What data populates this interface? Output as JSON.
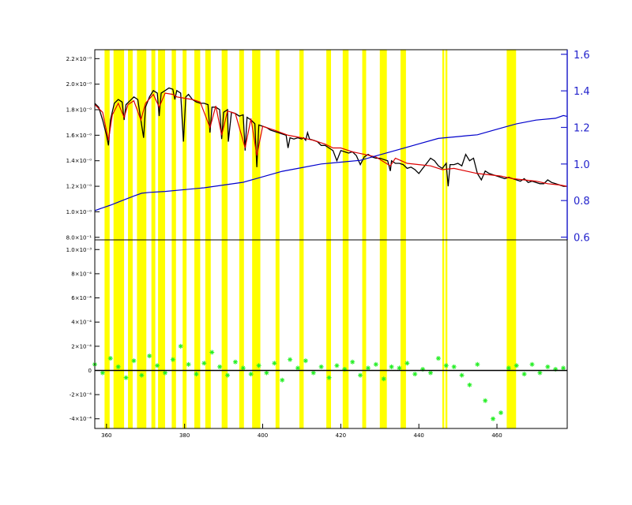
{
  "chart_data": [
    {
      "panel": "top",
      "type": "line",
      "xlim": [
        357,
        478
      ],
      "ylim": [
        0.78,
        2.27
      ],
      "y_tick_labels": [
        {
          "v": 0.8,
          "label": "8.0×10⁻¹"
        },
        {
          "v": 1.0,
          "label": "1.0×10⁻⁰"
        },
        {
          "v": 1.2,
          "label": "1.2×10⁻⁰"
        },
        {
          "v": 1.4,
          "label": "1.4×10⁻⁰"
        },
        {
          "v": 1.6,
          "label": "1.6×10⁻⁰"
        },
        {
          "v": 1.8,
          "label": "1.8×10⁻⁰"
        },
        {
          "v": 2.0,
          "label": "2.0×10⁻⁰"
        },
        {
          "v": 2.2,
          "label": "2.2×10⁻⁰"
        }
      ],
      "right_axis": {
        "ylim": [
          0.585,
          1.625
        ],
        "ticks": [
          "0.6",
          "0.8",
          "1.0",
          "1.2",
          "1.4",
          "1.6"
        ],
        "color": "#2222cc"
      },
      "masked_bands": [
        [
          359.5,
          360.8
        ],
        [
          361.8,
          364.5
        ],
        [
          365.5,
          366.7
        ],
        [
          367.8,
          370.2
        ],
        [
          371.5,
          372.5
        ],
        [
          373.2,
          375.0
        ],
        [
          376.7,
          377.8
        ],
        [
          379.5,
          380.5
        ],
        [
          382.5,
          384.0
        ],
        [
          385.3,
          386.7
        ],
        [
          389.5,
          391.0
        ],
        [
          394.0,
          395.2
        ],
        [
          397.3,
          399.4
        ],
        [
          403.3,
          404.3
        ],
        [
          409.4,
          410.5
        ],
        [
          416.3,
          417.5
        ],
        [
          420.5,
          422.0
        ],
        [
          425.5,
          426.5
        ],
        [
          430.0,
          431.8
        ],
        [
          435.3,
          436.7
        ],
        [
          446.0,
          446.5
        ],
        [
          446.8,
          447.3
        ],
        [
          462.5,
          464.9
        ]
      ],
      "band_color": "#ffff00",
      "series": [
        {
          "color": "#000000",
          "x": [
            357,
            358,
            359,
            360,
            360.5,
            361,
            362,
            363,
            364,
            364.5,
            365,
            366,
            367,
            368,
            368.8,
            369.5,
            370,
            371,
            372,
            373,
            373.5,
            374,
            375,
            376,
            377,
            377.5,
            378,
            379,
            379.7,
            380.3,
            381,
            382,
            383,
            384,
            385,
            386,
            386.5,
            387,
            388,
            389,
            389.5,
            390,
            391,
            391.2,
            392,
            393,
            394,
            395,
            395.5,
            396,
            397,
            398,
            398.5,
            399,
            400,
            401,
            402,
            403,
            404,
            405,
            406,
            406.5,
            407,
            408,
            409,
            410,
            410.5,
            411,
            411.5,
            412,
            413,
            414,
            415,
            416,
            417,
            418,
            419,
            420,
            421,
            422,
            423,
            424,
            425,
            426,
            427,
            428,
            429,
            430,
            431,
            432,
            432.7,
            433,
            434,
            435,
            436,
            437,
            438,
            439,
            440,
            441,
            442,
            443,
            444,
            445,
            446,
            447,
            447.5,
            448,
            449,
            450,
            451,
            452,
            453,
            454,
            455,
            456,
            457,
            458,
            459,
            460,
            461,
            462,
            463,
            464,
            465,
            466,
            467,
            468,
            469,
            470,
            471,
            472,
            473,
            474,
            475,
            476,
            477,
            478
          ],
          "y": [
            1.85,
            1.82,
            1.72,
            1.6,
            1.52,
            1.72,
            1.85,
            1.88,
            1.86,
            1.72,
            1.84,
            1.87,
            1.9,
            1.88,
            1.72,
            1.58,
            1.82,
            1.9,
            1.95,
            1.93,
            1.75,
            1.93,
            1.95,
            1.97,
            1.96,
            1.88,
            1.95,
            1.93,
            1.55,
            1.9,
            1.92,
            1.88,
            1.86,
            1.85,
            1.85,
            1.84,
            1.62,
            1.82,
            1.82,
            1.8,
            1.57,
            1.78,
            1.8,
            1.55,
            1.78,
            1.77,
            1.75,
            1.76,
            1.48,
            1.74,
            1.72,
            1.69,
            1.35,
            1.68,
            1.67,
            1.66,
            1.64,
            1.63,
            1.62,
            1.61,
            1.6,
            1.5,
            1.58,
            1.57,
            1.58,
            1.57,
            1.58,
            1.56,
            1.62,
            1.57,
            1.56,
            1.55,
            1.52,
            1.52,
            1.5,
            1.48,
            1.4,
            1.48,
            1.47,
            1.46,
            1.47,
            1.44,
            1.37,
            1.43,
            1.45,
            1.43,
            1.42,
            1.42,
            1.41,
            1.4,
            1.32,
            1.4,
            1.38,
            1.38,
            1.37,
            1.34,
            1.35,
            1.33,
            1.3,
            1.34,
            1.38,
            1.42,
            1.4,
            1.36,
            1.34,
            1.38,
            1.2,
            1.37,
            1.37,
            1.38,
            1.36,
            1.45,
            1.4,
            1.42,
            1.3,
            1.25,
            1.32,
            1.3,
            1.29,
            1.28,
            1.27,
            1.26,
            1.27,
            1.26,
            1.25,
            1.24,
            1.26,
            1.23,
            1.24,
            1.23,
            1.22,
            1.22,
            1.25,
            1.23,
            1.22,
            1.21,
            1.2,
            1.2
          ]
        },
        {
          "color": "#dd0000",
          "x": [
            357,
            359,
            360.5,
            361.5,
            363,
            364.5,
            365.5,
            367,
            368.8,
            370,
            372,
            373.5,
            375,
            377,
            378,
            380,
            382,
            384,
            386.5,
            388,
            389.5,
            391,
            393,
            395.5,
            397,
            398.5,
            400,
            403,
            406.5,
            410,
            413,
            416,
            418,
            420,
            423,
            426,
            429,
            432.7,
            434,
            437,
            440,
            443,
            446,
            449,
            452,
            455,
            458,
            461,
            464,
            467,
            470,
            473,
            476,
            478
          ],
          "y": [
            1.84,
            1.78,
            1.56,
            1.76,
            1.85,
            1.74,
            1.84,
            1.87,
            1.72,
            1.85,
            1.92,
            1.82,
            1.93,
            1.92,
            1.9,
            1.89,
            1.88,
            1.86,
            1.66,
            1.83,
            1.6,
            1.79,
            1.77,
            1.5,
            1.73,
            1.44,
            1.67,
            1.64,
            1.6,
            1.58,
            1.56,
            1.53,
            1.5,
            1.5,
            1.47,
            1.45,
            1.43,
            1.36,
            1.42,
            1.38,
            1.37,
            1.36,
            1.33,
            1.34,
            1.32,
            1.3,
            1.29,
            1.28,
            1.26,
            1.25,
            1.24,
            1.22,
            1.21,
            1.2
          ]
        },
        {
          "color": "#0000cc",
          "axis": "right",
          "x": [
            357,
            359,
            361,
            364,
            367,
            369,
            371,
            375,
            380,
            385,
            390,
            395,
            400,
            405,
            410,
            415,
            420,
            425,
            430,
            435,
            440,
            445,
            450,
            452.5,
            455,
            460,
            465,
            470,
            475,
            477,
            478
          ],
          "y": [
            0.745,
            0.76,
            0.775,
            0.8,
            0.825,
            0.84,
            0.845,
            0.85,
            0.86,
            0.87,
            0.885,
            0.9,
            0.93,
            0.96,
            0.98,
            1.0,
            1.01,
            1.02,
            1.05,
            1.08,
            1.11,
            1.14,
            1.15,
            1.155,
            1.16,
            1.19,
            1.22,
            1.24,
            1.25,
            1.265,
            1.26
          ]
        }
      ]
    },
    {
      "panel": "bottom",
      "type": "scatter",
      "xlim": [
        357,
        478
      ],
      "ylim": [
        -0.00048,
        0.00108
      ],
      "x_tick_labels": [
        {
          "v": 360,
          "label": "360"
        },
        {
          "v": 380,
          "label": "380"
        },
        {
          "v": 400,
          "label": "400"
        },
        {
          "v": 420,
          "label": "420"
        },
        {
          "v": 440,
          "label": "440"
        },
        {
          "v": 460,
          "label": "460"
        }
      ],
      "y_tick_labels": [
        {
          "v": -0.0004,
          "label": "-4×10⁻⁴"
        },
        {
          "v": -0.0002,
          "label": "-2×10⁻⁴"
        },
        {
          "v": 0,
          "label": "0"
        },
        {
          "v": 0.0002,
          "label": "2×10⁻⁴"
        },
        {
          "v": 0.0004,
          "label": "4×10⁻⁴"
        },
        {
          "v": 0.0006,
          "label": "6×10⁻⁴"
        },
        {
          "v": 0.0008,
          "label": "8×10⁻⁴"
        },
        {
          "v": 0.001,
          "label": "1.0×10⁻³"
        }
      ],
      "zero_line": true,
      "band_color": "#ffff00",
      "series": [
        {
          "color": "#22ee22",
          "marker": "asterisk",
          "x": [
            357,
            359,
            361,
            363,
            365,
            367,
            369,
            371,
            373,
            375,
            377,
            379,
            381,
            383,
            385,
            387,
            389,
            391,
            393,
            395,
            397,
            399,
            401,
            403,
            405,
            407,
            409,
            411,
            413,
            415,
            417,
            419,
            421,
            423,
            425,
            427,
            429,
            431,
            433,
            435,
            437,
            439,
            441,
            443,
            445,
            447,
            449,
            451,
            453,
            455,
            457,
            459,
            461,
            463,
            465,
            467,
            469,
            471,
            473,
            475,
            477
          ],
          "y": [
            5e-05,
            -2e-05,
            0.0001,
            3e-05,
            -6e-05,
            8e-05,
            -4e-05,
            0.00012,
            4e-05,
            -2e-05,
            9e-05,
            0.0002,
            5e-05,
            -3e-05,
            6e-05,
            0.00015,
            3e-05,
            -4e-05,
            7e-05,
            2e-05,
            -3e-05,
            4e-05,
            -2e-05,
            6e-05,
            -8e-05,
            9e-05,
            2e-05,
            8e-05,
            -2e-05,
            3e-05,
            -6e-05,
            4e-05,
            1e-05,
            7e-05,
            -4e-05,
            2e-05,
            5e-05,
            -7e-05,
            3e-05,
            2e-05,
            6e-05,
            -3e-05,
            1e-05,
            -2e-05,
            0.0001,
            4e-05,
            3e-05,
            -4e-05,
            -0.00012,
            5e-05,
            -0.00025,
            -0.0004,
            -0.00035,
            2e-05,
            4e-05,
            -3e-05,
            5e-05,
            -2e-05,
            3e-05,
            1e-05,
            2e-05
          ]
        }
      ]
    }
  ]
}
